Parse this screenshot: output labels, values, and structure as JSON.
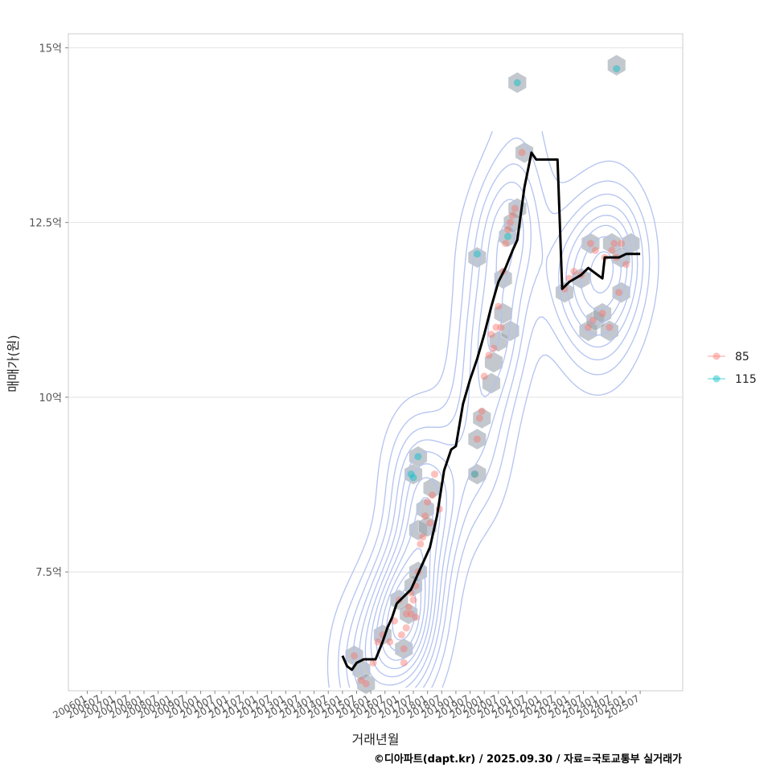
{
  "chart_data": {
    "type": "scatter",
    "xlabel": "거래년월",
    "ylabel": "매매가(원)",
    "caption": "©디아파트(dapt.kr) / 2025.09.30 / 자료=국토교통부 실거래가",
    "x_ticks": [
      "200601",
      "200607",
      "200701",
      "200707",
      "200801",
      "200807",
      "200901",
      "200907",
      "201001",
      "201007",
      "201101",
      "201107",
      "201201",
      "201207",
      "201301",
      "201307",
      "201401",
      "201407",
      "201501",
      "201507",
      "201601",
      "201607",
      "201701",
      "201707",
      "201801",
      "201807",
      "201901",
      "201907",
      "202001",
      "202007",
      "202101",
      "202107",
      "202201",
      "202207",
      "202301",
      "202307",
      "202401",
      "202407",
      "202501",
      "202507"
    ],
    "y_ticks": [
      {
        "value": 7.5,
        "label": "7.5억"
      },
      {
        "value": 10,
        "label": "10억"
      },
      {
        "value": 12.5,
        "label": "12.5억"
      },
      {
        "value": 15,
        "label": "15억"
      }
    ],
    "xlim": [
      "2005-05",
      "2027-01"
    ],
    "ylim": [
      5.8,
      15.2
    ],
    "y_unit": "억",
    "grid": true,
    "legend_position": "right",
    "legend": [
      {
        "name": "85",
        "color": "#F8766D"
      },
      {
        "name": "115",
        "color": "#00BFC4"
      }
    ],
    "series": [
      {
        "name": "85",
        "color": "#F8766D",
        "points": [
          {
            "x": "2015-06",
            "y": 6.3
          },
          {
            "x": "2015-09",
            "y": 5.95
          },
          {
            "x": "2015-11",
            "y": 5.9
          },
          {
            "x": "2016-02",
            "y": 6.2
          },
          {
            "x": "2016-04",
            "y": 6.5
          },
          {
            "x": "2016-06",
            "y": 6.6
          },
          {
            "x": "2016-09",
            "y": 6.5
          },
          {
            "x": "2016-11",
            "y": 6.8
          },
          {
            "x": "2017-01",
            "y": 7.1
          },
          {
            "x": "2017-02",
            "y": 6.6
          },
          {
            "x": "2017-03",
            "y": 6.4
          },
          {
            "x": "2017-03",
            "y": 6.2
          },
          {
            "x": "2017-04",
            "y": 6.9
          },
          {
            "x": "2017-04",
            "y": 6.7
          },
          {
            "x": "2017-05",
            "y": 7.0
          },
          {
            "x": "2017-06",
            "y": 7.2
          },
          {
            "x": "2017-06",
            "y": 6.9
          },
          {
            "x": "2017-07",
            "y": 7.1
          },
          {
            "x": "2017-08",
            "y": 7.3
          },
          {
            "x": "2017-08",
            "y": 6.85
          },
          {
            "x": "2017-09",
            "y": 7.5
          },
          {
            "x": "2017-10",
            "y": 7.9
          },
          {
            "x": "2017-11",
            "y": 8.0
          },
          {
            "x": "2017-12",
            "y": 8.3
          },
          {
            "x": "2018-01",
            "y": 8.5
          },
          {
            "x": "2018-02",
            "y": 8.2
          },
          {
            "x": "2018-03",
            "y": 8.6
          },
          {
            "x": "2018-04",
            "y": 8.9
          },
          {
            "x": "2018-06",
            "y": 8.4
          },
          {
            "x": "2019-09",
            "y": 8.9
          },
          {
            "x": "2019-10",
            "y": 9.4
          },
          {
            "x": "2019-11",
            "y": 9.7
          },
          {
            "x": "2019-12",
            "y": 9.8
          },
          {
            "x": "2020-01",
            "y": 10.3
          },
          {
            "x": "2020-03",
            "y": 10.6
          },
          {
            "x": "2020-04",
            "y": 10.9
          },
          {
            "x": "2020-05",
            "y": 10.7
          },
          {
            "x": "2020-06",
            "y": 11.0
          },
          {
            "x": "2020-07",
            "y": 11.3
          },
          {
            "x": "2020-08",
            "y": 11.0
          },
          {
            "x": "2020-09",
            "y": 11.8
          },
          {
            "x": "2020-10",
            "y": 12.2
          },
          {
            "x": "2020-11",
            "y": 12.4
          },
          {
            "x": "2020-12",
            "y": 12.5
          },
          {
            "x": "2021-01",
            "y": 12.6
          },
          {
            "x": "2021-02",
            "y": 12.7
          },
          {
            "x": "2021-05",
            "y": 13.5
          },
          {
            "x": "2022-11",
            "y": 11.55
          },
          {
            "x": "2023-01",
            "y": 11.7
          },
          {
            "x": "2023-03",
            "y": 11.8
          },
          {
            "x": "2023-06",
            "y": 11.75
          },
          {
            "x": "2023-09",
            "y": 11.0
          },
          {
            "x": "2023-10",
            "y": 12.2
          },
          {
            "x": "2023-11",
            "y": 11.1
          },
          {
            "x": "2023-12",
            "y": 12.1
          },
          {
            "x": "2024-03",
            "y": 11.2
          },
          {
            "x": "2024-04",
            "y": 12.0
          },
          {
            "x": "2024-06",
            "y": 11.0
          },
          {
            "x": "2024-07",
            "y": 12.1
          },
          {
            "x": "2024-08",
            "y": 12.2
          },
          {
            "x": "2024-09",
            "y": 12.0
          },
          {
            "x": "2024-10",
            "y": 11.5
          },
          {
            "x": "2024-11",
            "y": 12.2
          },
          {
            "x": "2025-01",
            "y": 11.9
          }
        ]
      },
      {
        "name": "115",
        "color": "#00BFC4",
        "points": [
          {
            "x": "2017-06",
            "y": 8.9
          },
          {
            "x": "2017-07",
            "y": 8.85
          },
          {
            "x": "2017-09",
            "y": 9.15
          },
          {
            "x": "2019-09",
            "y": 8.9
          },
          {
            "x": "2019-10",
            "y": 12.05
          },
          {
            "x": "2020-11",
            "y": 12.3
          },
          {
            "x": "2021-03",
            "y": 14.5
          },
          {
            "x": "2024-09",
            "y": 14.7
          }
        ]
      }
    ],
    "trend": {
      "name": "median",
      "color": "#000000",
      "points": [
        {
          "x": "2015-01",
          "y": 6.3
        },
        {
          "x": "2015-03",
          "y": 6.15
        },
        {
          "x": "2015-05",
          "y": 6.1
        },
        {
          "x": "2015-07",
          "y": 6.2
        },
        {
          "x": "2015-10",
          "y": 6.25
        },
        {
          "x": "2016-03",
          "y": 6.25
        },
        {
          "x": "2016-06",
          "y": 6.5
        },
        {
          "x": "2016-08",
          "y": 6.7
        },
        {
          "x": "2016-10",
          "y": 6.85
        },
        {
          "x": "2016-12",
          "y": 7.05
        },
        {
          "x": "2017-03",
          "y": 7.15
        },
        {
          "x": "2017-06",
          "y": 7.25
        },
        {
          "x": "2017-08",
          "y": 7.4
        },
        {
          "x": "2017-10",
          "y": 7.55
        },
        {
          "x": "2017-12",
          "y": 7.7
        },
        {
          "x": "2018-02",
          "y": 7.85
        },
        {
          "x": "2018-05",
          "y": 8.3
        },
        {
          "x": "2018-08",
          "y": 8.95
        },
        {
          "x": "2018-11",
          "y": 9.25
        },
        {
          "x": "2019-01",
          "y": 9.3
        },
        {
          "x": "2019-04",
          "y": 9.9
        },
        {
          "x": "2019-07",
          "y": 10.25
        },
        {
          "x": "2019-10",
          "y": 10.55
        },
        {
          "x": "2020-01",
          "y": 10.9
        },
        {
          "x": "2020-04",
          "y": 11.3
        },
        {
          "x": "2020-07",
          "y": 11.65
        },
        {
          "x": "2020-10",
          "y": 11.85
        },
        {
          "x": "2021-01",
          "y": 12.1
        },
        {
          "x": "2021-03",
          "y": 12.25
        },
        {
          "x": "2021-06",
          "y": 13.0
        },
        {
          "x": "2021-09",
          "y": 13.5
        },
        {
          "x": "2021-11",
          "y": 13.4
        },
        {
          "x": "2022-08",
          "y": 13.4
        },
        {
          "x": "2022-10",
          "y": 11.55
        },
        {
          "x": "2023-01",
          "y": 11.65
        },
        {
          "x": "2023-06",
          "y": 11.75
        },
        {
          "x": "2023-09",
          "y": 11.85
        },
        {
          "x": "2024-01",
          "y": 11.75
        },
        {
          "x": "2024-03",
          "y": 11.7
        },
        {
          "x": "2024-04",
          "y": 12.0
        },
        {
          "x": "2024-07",
          "y": 12.0
        },
        {
          "x": "2024-10",
          "y": 12.0
        },
        {
          "x": "2025-01",
          "y": 12.05
        },
        {
          "x": "2025-07",
          "y": 12.05
        }
      ]
    },
    "hexbins": [
      {
        "x": "2015-06",
        "y": 6.3
      },
      {
        "x": "2015-09",
        "y": 6.1
      },
      {
        "x": "2015-11",
        "y": 5.9
      },
      {
        "x": "2016-06",
        "y": 6.6
      },
      {
        "x": "2017-01",
        "y": 7.1
      },
      {
        "x": "2017-03",
        "y": 6.4
      },
      {
        "x": "2017-05",
        "y": 6.9
      },
      {
        "x": "2017-07",
        "y": 7.3
      },
      {
        "x": "2017-07",
        "y": 8.9
      },
      {
        "x": "2017-09",
        "y": 9.15
      },
      {
        "x": "2017-09",
        "y": 7.5
      },
      {
        "x": "2017-09",
        "y": 8.1
      },
      {
        "x": "2017-12",
        "y": 8.4
      },
      {
        "x": "2018-01",
        "y": 8.15
      },
      {
        "x": "2018-03",
        "y": 8.7
      },
      {
        "x": "2019-10",
        "y": 8.9
      },
      {
        "x": "2019-10",
        "y": 9.4
      },
      {
        "x": "2019-10",
        "y": 12.0
      },
      {
        "x": "2019-12",
        "y": 9.7
      },
      {
        "x": "2020-04",
        "y": 10.2
      },
      {
        "x": "2020-05",
        "y": 10.5
      },
      {
        "x": "2020-07",
        "y": 10.8
      },
      {
        "x": "2020-09",
        "y": 11.2
      },
      {
        "x": "2020-09",
        "y": 11.7
      },
      {
        "x": "2020-11",
        "y": 12.3
      },
      {
        "x": "2020-12",
        "y": 10.95
      },
      {
        "x": "2021-01",
        "y": 12.5
      },
      {
        "x": "2021-03",
        "y": 12.7
      },
      {
        "x": "2021-03",
        "y": 14.5
      },
      {
        "x": "2021-06",
        "y": 13.5
      },
      {
        "x": "2022-11",
        "y": 11.5
      },
      {
        "x": "2023-06",
        "y": 11.7
      },
      {
        "x": "2023-09",
        "y": 10.95
      },
      {
        "x": "2023-10",
        "y": 12.2
      },
      {
        "x": "2023-12",
        "y": 11.1
      },
      {
        "x": "2024-03",
        "y": 11.2
      },
      {
        "x": "2024-06",
        "y": 10.95
      },
      {
        "x": "2024-07",
        "y": 12.2
      },
      {
        "x": "2024-09",
        "y": 14.75
      },
      {
        "x": "2024-11",
        "y": 12.0
      },
      {
        "x": "2024-11",
        "y": 11.5
      },
      {
        "x": "2025-03",
        "y": 12.2
      }
    ],
    "density_color": "#B4C3F0"
  }
}
